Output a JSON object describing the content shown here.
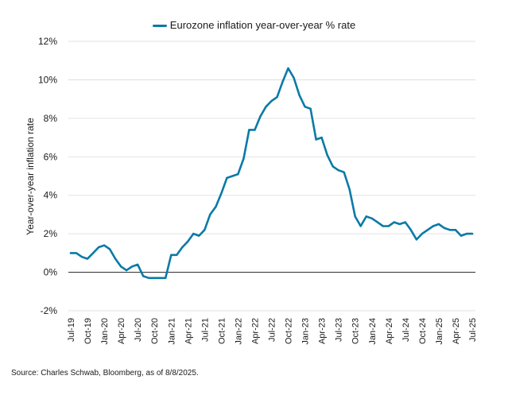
{
  "chart_data": {
    "type": "line",
    "title": "",
    "xlabel": "",
    "ylabel": "Year-over-year inflation rate",
    "ylim": [
      -2,
      12
    ],
    "yticks": [
      -2,
      0,
      2,
      4,
      6,
      8,
      10,
      12
    ],
    "ytick_labels": [
      "-2%",
      "0%",
      "2%",
      "4%",
      "6%",
      "8%",
      "10%",
      "12%"
    ],
    "xtick_labels": [
      "Jul-19",
      "Oct-19",
      "Jan-20",
      "Apr-20",
      "Jul-20",
      "Oct-20",
      "Jan-21",
      "Apr-21",
      "Jul-21",
      "Oct-21",
      "Jan-22",
      "Apr-22",
      "Jul-22",
      "Oct-22",
      "Jan-23",
      "Apr-23",
      "Jul-23",
      "Oct-23",
      "Jan-24",
      "Apr-24",
      "Jul-24",
      "Oct-24",
      "Jan-25",
      "Apr-25",
      "Jul-25"
    ],
    "legend_position": "top-center",
    "series": [
      {
        "name": "Eurozone inflation year-over-year % rate",
        "color": "#0a7aa6",
        "values": [
          1.0,
          1.0,
          0.8,
          0.7,
          1.0,
          1.3,
          1.4,
          1.2,
          0.7,
          0.3,
          0.1,
          0.3,
          0.4,
          -0.2,
          -0.3,
          -0.3,
          -0.3,
          -0.3,
          0.9,
          0.9,
          1.3,
          1.6,
          2.0,
          1.9,
          2.2,
          3.0,
          3.4,
          4.1,
          4.9,
          5.0,
          5.1,
          5.9,
          7.4,
          7.4,
          8.1,
          8.6,
          8.9,
          9.1,
          9.9,
          10.6,
          10.1,
          9.2,
          8.6,
          8.5,
          6.9,
          7.0,
          6.1,
          5.5,
          5.3,
          5.2,
          4.3,
          2.9,
          2.4,
          2.9,
          2.8,
          2.6,
          2.4,
          2.4,
          2.6,
          2.5,
          2.6,
          2.2,
          1.7,
          2.0,
          2.2,
          2.4,
          2.5,
          2.3,
          2.2,
          2.2,
          1.9,
          2.0,
          2.0
        ]
      }
    ]
  },
  "legend": {
    "label": "Eurozone inflation year-over-year % rate",
    "color": "#0a7aa6"
  },
  "source": "Source: Charles Schwab, Bloomberg, as of 8/8/2025."
}
